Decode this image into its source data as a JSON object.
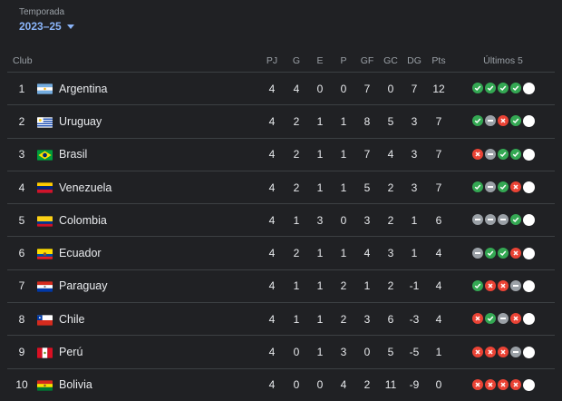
{
  "season": {
    "label": "Temporada",
    "value": "2023–25"
  },
  "headers": {
    "pos": "",
    "club": "Club",
    "pj": "PJ",
    "g": "G",
    "e": "E",
    "p": "P",
    "gf": "GF",
    "gc": "GC",
    "dg": "DG",
    "pts": "Pts",
    "last5": "Últimos 5"
  },
  "rows": [
    {
      "pos": "1",
      "team": "Argentina",
      "flag": "argentina-flag",
      "pj": "4",
      "g": "4",
      "e": "0",
      "p": "0",
      "gf": "7",
      "gc": "0",
      "dg": "7",
      "pts": "12",
      "form": [
        "W",
        "W",
        "W",
        "W",
        "N"
      ]
    },
    {
      "pos": "2",
      "team": "Uruguay",
      "flag": "uruguay-flag",
      "pj": "4",
      "g": "2",
      "e": "1",
      "p": "1",
      "gf": "8",
      "gc": "5",
      "dg": "3",
      "pts": "7",
      "form": [
        "W",
        "D",
        "L",
        "W",
        "N"
      ]
    },
    {
      "pos": "3",
      "team": "Brasil",
      "flag": "brazil-flag",
      "pj": "4",
      "g": "2",
      "e": "1",
      "p": "1",
      "gf": "7",
      "gc": "4",
      "dg": "3",
      "pts": "7",
      "form": [
        "L",
        "D",
        "W",
        "W",
        "N"
      ]
    },
    {
      "pos": "4",
      "team": "Venezuela",
      "flag": "venezuela-flag",
      "pj": "4",
      "g": "2",
      "e": "1",
      "p": "1",
      "gf": "5",
      "gc": "2",
      "dg": "3",
      "pts": "7",
      "form": [
        "W",
        "D",
        "W",
        "L",
        "N"
      ]
    },
    {
      "pos": "5",
      "team": "Colombia",
      "flag": "colombia-flag",
      "pj": "4",
      "g": "1",
      "e": "3",
      "p": "0",
      "gf": "3",
      "gc": "2",
      "dg": "1",
      "pts": "6",
      "form": [
        "D",
        "D",
        "D",
        "W",
        "N"
      ]
    },
    {
      "pos": "6",
      "team": "Ecuador",
      "flag": "ecuador-flag",
      "pj": "4",
      "g": "2",
      "e": "1",
      "p": "1",
      "gf": "4",
      "gc": "3",
      "dg": "1",
      "pts": "4",
      "form": [
        "D",
        "W",
        "W",
        "L",
        "N"
      ]
    },
    {
      "pos": "7",
      "team": "Paraguay",
      "flag": "paraguay-flag",
      "pj": "4",
      "g": "1",
      "e": "1",
      "p": "2",
      "gf": "1",
      "gc": "2",
      "dg": "-1",
      "pts": "4",
      "form": [
        "W",
        "L",
        "L",
        "D",
        "N"
      ]
    },
    {
      "pos": "8",
      "team": "Chile",
      "flag": "chile-flag",
      "pj": "4",
      "g": "1",
      "e": "1",
      "p": "2",
      "gf": "3",
      "gc": "6",
      "dg": "-3",
      "pts": "4",
      "form": [
        "L",
        "W",
        "D",
        "L",
        "N"
      ]
    },
    {
      "pos": "9",
      "team": "Perú",
      "flag": "peru-flag",
      "pj": "4",
      "g": "0",
      "e": "1",
      "p": "3",
      "gf": "0",
      "gc": "5",
      "dg": "-5",
      "pts": "1",
      "form": [
        "L",
        "L",
        "L",
        "D",
        "N"
      ]
    },
    {
      "pos": "10",
      "team": "Bolivia",
      "flag": "bolivia-flag",
      "pj": "4",
      "g": "0",
      "e": "0",
      "p": "4",
      "gf": "2",
      "gc": "11",
      "dg": "-9",
      "pts": "0",
      "form": [
        "L",
        "L",
        "L",
        "L",
        "N"
      ]
    }
  ],
  "colors": {
    "win": "#34a853",
    "loss": "#ea4335",
    "draw": "#9aa0a6",
    "next": "#ffffff",
    "accent": "#8ab4f8",
    "background": "#202124"
  }
}
